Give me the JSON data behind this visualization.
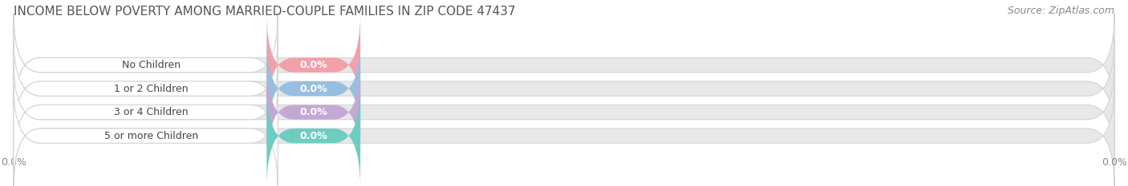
{
  "title": "INCOME BELOW POVERTY AMONG MARRIED-COUPLE FAMILIES IN ZIP CODE 47437",
  "source": "Source: ZipAtlas.com",
  "categories": [
    "No Children",
    "1 or 2 Children",
    "3 or 4 Children",
    "5 or more Children"
  ],
  "values": [
    0.0,
    0.0,
    0.0,
    0.0
  ],
  "bar_colors": [
    "#f2a0aa",
    "#98bfe0",
    "#c4a8d4",
    "#6dcdc0"
  ],
  "background_color": "#ffffff",
  "bar_bg_color": "#e8e8e8",
  "bar_bg_edge_color": "#d4d4d4",
  "title_fontsize": 11,
  "source_fontsize": 9,
  "label_fontsize": 9,
  "value_fontsize": 9,
  "tick_fontsize": 9,
  "tick_color": "#888888"
}
